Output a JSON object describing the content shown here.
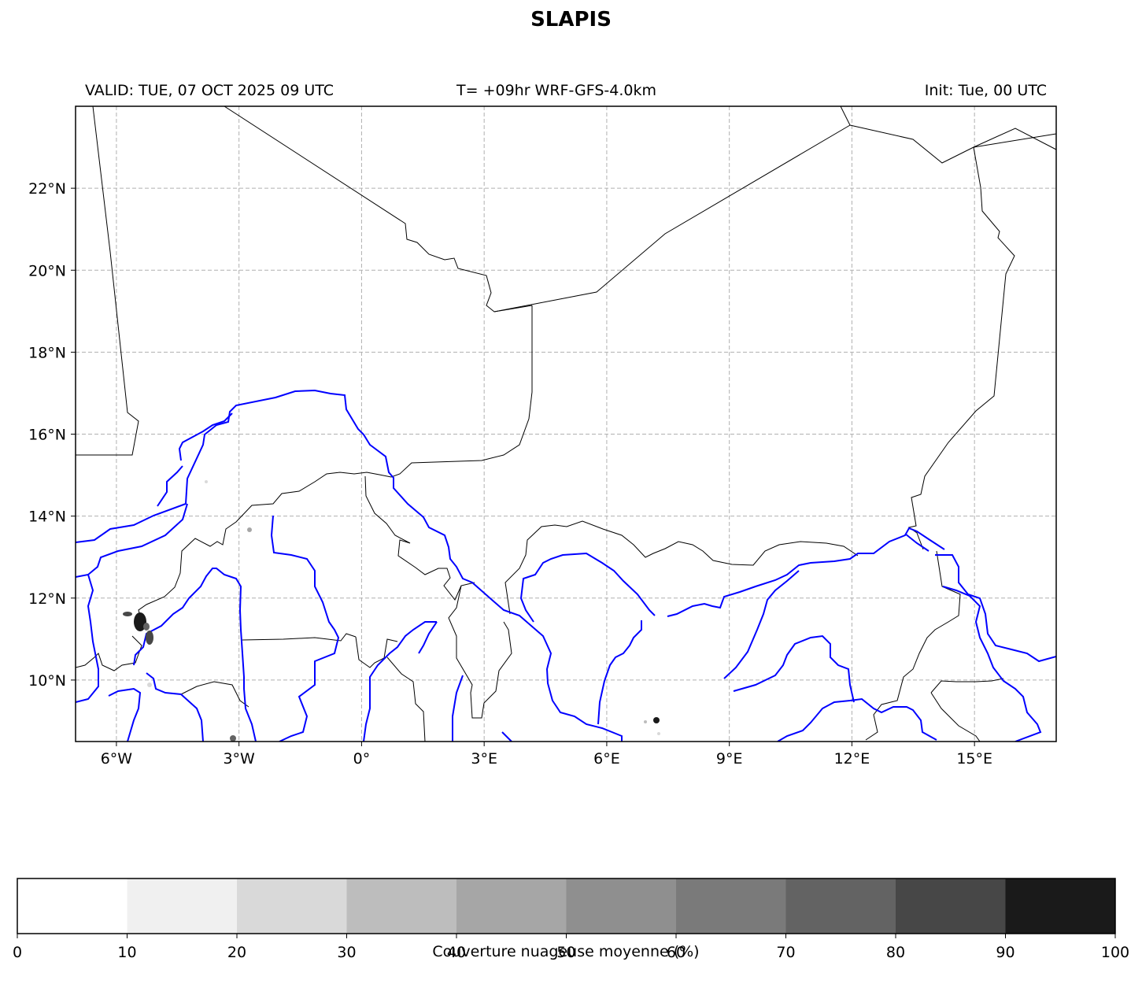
{
  "title": "SLAPIS",
  "header": {
    "valid": "VALID: TUE, 07 OCT 2025 09 UTC",
    "run": "T= +09hr WRF-GFS-4.0km",
    "init": "Init: Tue, 00 UTC"
  },
  "map": {
    "lon_range": [
      -7,
      17
    ],
    "lat_range": [
      8.5,
      24
    ],
    "lon_ticks": [
      {
        "value": -6,
        "label": "6°W"
      },
      {
        "value": -3,
        "label": "3°W"
      },
      {
        "value": 0,
        "label": "0°"
      },
      {
        "value": 3,
        "label": "3°E"
      },
      {
        "value": 6,
        "label": "6°E"
      },
      {
        "value": 9,
        "label": "9°E"
      },
      {
        "value": 12,
        "label": "12°E"
      },
      {
        "value": 15,
        "label": "15°E"
      }
    ],
    "lat_ticks": [
      {
        "value": 22,
        "label": "22°N"
      },
      {
        "value": 20,
        "label": "20°N"
      },
      {
        "value": 18,
        "label": "18°N"
      },
      {
        "value": 16,
        "label": "16°N"
      },
      {
        "value": 14,
        "label": "14°N"
      },
      {
        "value": 12,
        "label": "12°N"
      },
      {
        "value": 10,
        "label": "10°N"
      }
    ],
    "gridlines": true,
    "colors": {
      "borders": "#000000",
      "rivers": "#0000ff",
      "grid": "#b0b0b0"
    }
  },
  "colorbar": {
    "label": "Couverture nuageuse moyenne (%)",
    "ticks": [
      "0",
      "10",
      "20",
      "30",
      "40",
      "50",
      "60",
      "70",
      "80",
      "90",
      "100"
    ],
    "colors": [
      "#ffffff",
      "#f0f0f0",
      "#d9d9d9",
      "#bdbdbd",
      "#a6a6a6",
      "#8f8f8f",
      "#7a7a7a",
      "#636363",
      "#474747",
      "#1a1a1a"
    ]
  }
}
